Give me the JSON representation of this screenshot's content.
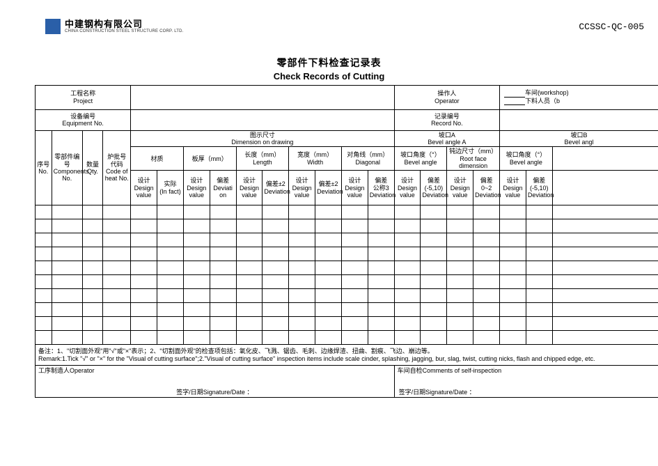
{
  "doc_code": "CCSSC-QC-005",
  "logo": {
    "cn": "中建钢构有限公司",
    "en": "CHINA CONSTRUCTION STEEL STRUCTURE CORP. LTD."
  },
  "title": {
    "cn": "零部件下料检查记录表",
    "en": "Check Records of Cutting"
  },
  "meta": {
    "project": {
      "cn": "工程名称",
      "en": "Project"
    },
    "operator": {
      "cn": "操作人",
      "en": "Operator"
    },
    "workshop": {
      "prefix": "车间",
      "suffix": "(workshop)"
    },
    "cutter": "下料人员（b",
    "equip": {
      "cn": "设备编号",
      "en": "Equipment No."
    },
    "record": {
      "cn": "记录编号",
      "en": "Record No."
    }
  },
  "cols": {
    "no": {
      "cn": "序号",
      "en": "No."
    },
    "comp": {
      "cn": "零部件编号",
      "en": "Components No."
    },
    "qty": {
      "cn": "数量",
      "en": "Qty."
    },
    "heat": {
      "cn": "炉批号代码",
      "en": "Code of heat No."
    },
    "dim": {
      "cn": "图示尺寸",
      "en": "Dimension on drawing"
    },
    "material": "材质",
    "thick": "板厚（mm）",
    "length": {
      "cn": "长度（mm）",
      "en": "Length"
    },
    "width": {
      "cn": "宽度（mm）",
      "en": "Width"
    },
    "diag": {
      "cn": "对角线（mm）",
      "en": "Diagonal"
    },
    "bevelA": {
      "cn": "坡口A",
      "en": "Bevel angle A"
    },
    "bevelB": {
      "cn": "坡口B",
      "en": "Bevel angl"
    },
    "bangle": {
      "cn": "坡口角度（°）",
      "en": "Bevel angle"
    },
    "root": {
      "cn": "钝边尺寸（mm）",
      "en": "Root face dimension"
    },
    "design": {
      "cn": "设计",
      "en": "Design value"
    },
    "actual": {
      "cn": "实际",
      "en": "(In fact)"
    },
    "dev": {
      "cn": "偏差",
      "en": "Deviation"
    },
    "dev_on": {
      "cn": "偏差",
      "en": "Deviati on"
    },
    "dev2": {
      "cn": "偏差±2",
      "en": "Deviation"
    },
    "dev3": {
      "cn": "偏差",
      "cn2": "公称3",
      "en": "Deviation"
    },
    "dev510": {
      "cn": "偏差",
      "cn2": "(-5,10)",
      "en": "Deviation"
    },
    "dev02": {
      "cn": "偏差",
      "cn2": "0~2",
      "en": "Deviation"
    }
  },
  "remark": {
    "cn": "备注：1、\"切割面外观\"用\"√\"或\"×\"表示；2、\"切割面外观\"的检查项包括：氧化皮、飞溅、锯齿、毛刺、边缘焊渣、扭曲、割痕、飞边、崩边等。",
    "en": "Remark:1.Tick \"√\" or \"×\" for the \"Visual of cutting surface\";2.\"Visual of cutting surface\" inspection items include scale cinder, splashing, jagging, bur, slag, twist, cutting nicks, flash and chipped edge, etc."
  },
  "footer": {
    "operator": "工序制造人Operator",
    "self_insp": "车间自检Comments of self-inspection",
    "sign_left": "签字/日期Signature/Date ：",
    "sign_right": "签字/日期Signature/Date ："
  },
  "data_rows": 10
}
